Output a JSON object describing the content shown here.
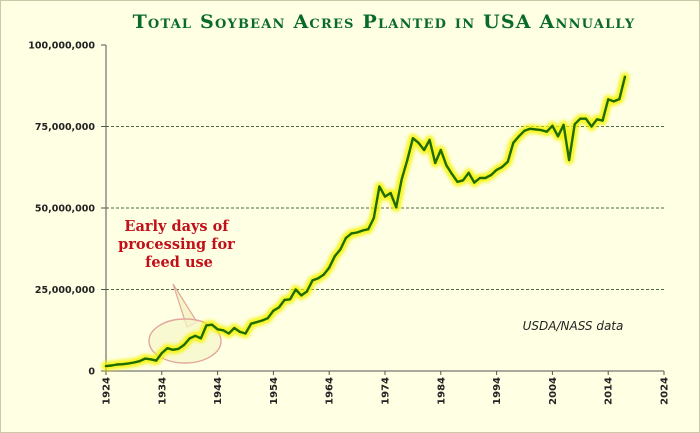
{
  "chart_data": {
    "type": "line",
    "title": "Total Soybean  Acres Planted in USA Annually",
    "xlabel": "",
    "ylabel": "",
    "xlim": [
      1924,
      2024
    ],
    "ylim": [
      0,
      100000000
    ],
    "x_ticks": [
      "1924",
      "1934",
      "1944",
      "1954",
      "1964",
      "1974",
      "1984",
      "1994",
      "2004",
      "2014",
      "2024"
    ],
    "y_ticks": [
      "0",
      "25,000,000",
      "50,000,000",
      "75,000,000",
      "100,000,000"
    ],
    "y_tick_values": [
      0,
      25000000,
      50000000,
      75000000,
      100000000
    ],
    "x_tick_values": [
      1924,
      1934,
      1944,
      1954,
      1964,
      1974,
      1984,
      1994,
      2004,
      2014,
      2024
    ],
    "grid": "horizontal dashed at 25,000,000 / 50,000,000 / 75,000,000",
    "annotation": "Early days of processing for feed use",
    "source_note": "USDA/NASS data",
    "line_color": "#1f6b00",
    "glow_color": "#f4f400",
    "annotation_color": "#c0101a",
    "title_color": "#0a6a2a",
    "series": [
      {
        "x": [
          1924,
          1925,
          1926,
          1927,
          1928,
          1929,
          1930,
          1931,
          1932,
          1933,
          1934,
          1935,
          1936,
          1937,
          1938,
          1939,
          1940,
          1941,
          1942,
          1943,
          1944,
          1945,
          1946,
          1947,
          1948,
          1949,
          1950,
          1951,
          1952,
          1953,
          1954,
          1955,
          1956,
          1957,
          1958,
          1959,
          1960,
          1961,
          1962,
          1963,
          1964,
          1965,
          1966,
          1967,
          1968,
          1969,
          1970,
          1971,
          1972,
          1973,
          1974,
          1975,
          1976,
          1977,
          1978,
          1979,
          1980,
          1981,
          1982,
          1983,
          1984,
          1985,
          1986,
          1987,
          1988,
          1989,
          1990,
          1991,
          1992,
          1993,
          1994,
          1995,
          1996,
          1997,
          1998,
          1999,
          2000,
          2001,
          2002,
          2003,
          2004,
          2005,
          2006,
          2007,
          2008,
          2009,
          2010,
          2011,
          2012,
          2013,
          2014,
          2015,
          2016,
          2017
        ],
        "values": [
          1500000,
          1700000,
          2000000,
          2100000,
          2300000,
          2600000,
          3000000,
          3800000,
          3600000,
          3200000,
          5500000,
          7000000,
          6500000,
          6800000,
          8000000,
          10000000,
          10800000,
          10000000,
          14000000,
          14200000,
          12800000,
          12500000,
          11500000,
          13200000,
          12000000,
          11500000,
          14500000,
          15000000,
          15500000,
          16200000,
          18500000,
          19500000,
          21800000,
          22000000,
          25000000,
          23200000,
          24400000,
          27800000,
          28400000,
          29500000,
          31700000,
          35200000,
          37300000,
          40800000,
          42200000,
          42500000,
          43100000,
          43500000,
          46900000,
          56600000,
          53500000,
          54600000,
          50200000,
          58800000,
          64700000,
          71400000,
          70000000,
          67800000,
          70900000,
          63800000,
          67800000,
          63100000,
          60400000,
          58000000,
          58500000,
          60800000,
          57800000,
          59200000,
          59200000,
          60100000,
          61700000,
          62600000,
          64200000,
          70000000,
          72000000,
          73700000,
          74300000,
          74100000,
          73900000,
          73400000,
          75200000,
          72000000,
          75500000,
          64700000,
          75700000,
          77400000,
          77400000,
          75000000,
          77200000,
          76800000,
          83300000,
          82700000,
          83400000,
          90200000
        ]
      }
    ]
  }
}
